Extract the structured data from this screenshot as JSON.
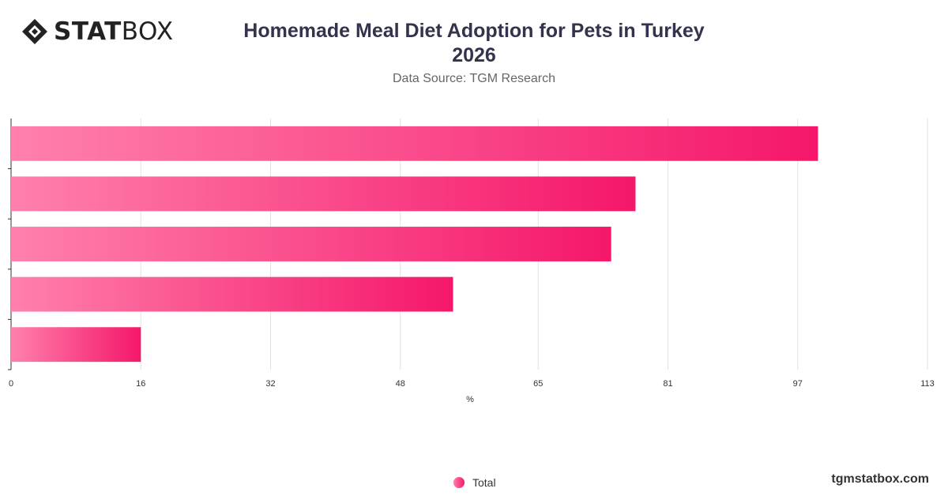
{
  "brand": {
    "logo_bold": "STAT",
    "logo_light": "BOX"
  },
  "chart_data": {
    "type": "bar",
    "orientation": "horizontal",
    "title": "Homemade Meal Diet Adoption for Pets in Turkey 2026",
    "subtitle": "Data Source: TGM Research",
    "xlabel": "%",
    "ylabel": "",
    "xlim": [
      0,
      113
    ],
    "x_ticks": [
      0,
      16,
      32,
      48,
      65,
      81,
      97,
      113
    ],
    "grid": true,
    "legend_position": "bottom",
    "series": [
      {
        "name": "Total",
        "values": [
          99.5,
          77,
          74,
          54.5,
          16
        ]
      }
    ],
    "colors": {
      "bar_start": "#ff80ad",
      "bar_end": "#f5176a",
      "grid": "#e2e2e2",
      "axis": "#333333"
    }
  },
  "footer": {
    "site": "tgmstatbox.com"
  }
}
